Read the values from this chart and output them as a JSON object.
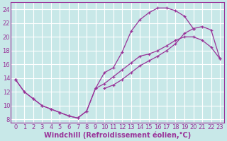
{
  "bg_color": "#c8e8e8",
  "line_color": "#993399",
  "grid_color": "#ffffff",
  "xlabel": "Windchill (Refroidissement éolien,°C)",
  "ylim": [
    7.5,
    25.0
  ],
  "xlim": [
    -0.5,
    23.5
  ],
  "yticks": [
    8,
    10,
    12,
    14,
    16,
    18,
    20,
    22,
    24
  ],
  "xticks": [
    0,
    1,
    2,
    3,
    4,
    5,
    6,
    7,
    8,
    9,
    10,
    11,
    12,
    13,
    14,
    15,
    16,
    17,
    18,
    19,
    20,
    21,
    22,
    23
  ],
  "curve1_x": [
    0,
    1,
    2,
    3,
    4,
    5,
    6,
    7,
    8,
    9,
    10,
    11,
    12,
    13,
    14,
    15,
    16,
    17,
    18,
    19,
    20,
    21,
    22,
    23
  ],
  "curve1_y": [
    13.8,
    12.0,
    11.0,
    10.0,
    9.5,
    9.0,
    8.5,
    8.2,
    9.2,
    12.5,
    14.8,
    15.5,
    17.8,
    20.8,
    22.5,
    23.5,
    24.2,
    24.2,
    23.8,
    23.0,
    21.2,
    null,
    null,
    null
  ],
  "curve2_x": [
    0,
    1,
    2,
    3,
    4,
    5,
    6,
    7,
    8,
    9,
    10,
    11,
    12,
    13,
    14,
    15,
    16,
    17,
    18,
    19,
    20,
    21,
    22,
    23
  ],
  "curve2_y": [
    13.8,
    12.0,
    11.0,
    10.0,
    9.5,
    9.0,
    8.5,
    8.2,
    9.2,
    12.5,
    13.2,
    14.2,
    15.2,
    16.2,
    17.2,
    17.5,
    18.0,
    18.7,
    19.5,
    20.0,
    20.0,
    19.5,
    18.5,
    16.8
  ],
  "curve3_x": [
    0,
    1,
    2,
    3,
    4,
    5,
    6,
    7,
    8,
    9,
    10,
    11,
    12,
    13,
    14,
    15,
    16,
    17,
    18,
    19,
    20,
    21,
    22,
    23
  ],
  "curve3_y": [
    13.8,
    null,
    null,
    null,
    null,
    null,
    null,
    null,
    null,
    null,
    12.5,
    13.0,
    13.8,
    14.8,
    15.8,
    16.5,
    17.2,
    18.0,
    19.0,
    20.5,
    21.2,
    21.5,
    21.0,
    16.8
  ],
  "xlabel_fontsize": 7.0,
  "tick_fontsize": 6.0
}
